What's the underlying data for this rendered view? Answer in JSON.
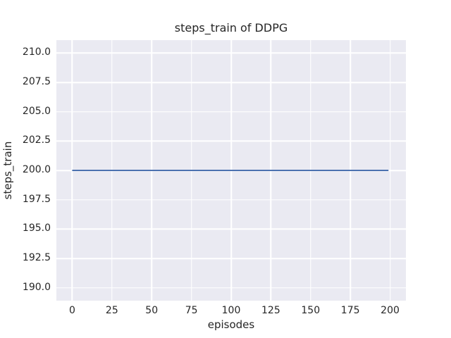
{
  "chart_data": {
    "type": "line",
    "title": "steps_train of DDPG",
    "xlabel": "episodes",
    "ylabel": "steps_train",
    "xlim": [
      -9.95,
      209.95
    ],
    "ylim": [
      188.9,
      211.1
    ],
    "x_ticks": [
      0,
      25,
      50,
      75,
      100,
      125,
      150,
      175,
      200
    ],
    "x_tick_labels": [
      "0",
      "25",
      "50",
      "75",
      "100",
      "125",
      "150",
      "175",
      "200"
    ],
    "y_ticks": [
      190.0,
      192.5,
      195.0,
      197.5,
      200.0,
      202.5,
      205.0,
      207.5,
      210.0
    ],
    "y_tick_labels": [
      "190.0",
      "192.5",
      "195.0",
      "197.5",
      "200.0",
      "202.5",
      "205.0",
      "207.5",
      "210.0"
    ],
    "grid": true,
    "legend": "none",
    "series": [
      {
        "name": "DDPG steps_train",
        "x_start": 0,
        "x_end": 199,
        "y_constant": 200,
        "color": "#4c72b0",
        "line_width": 2
      }
    ],
    "colors": {
      "figure_background": "#ffffff",
      "axes_background": "#eaeaf2",
      "gridline": "#ffffff",
      "text": "#262626"
    }
  }
}
